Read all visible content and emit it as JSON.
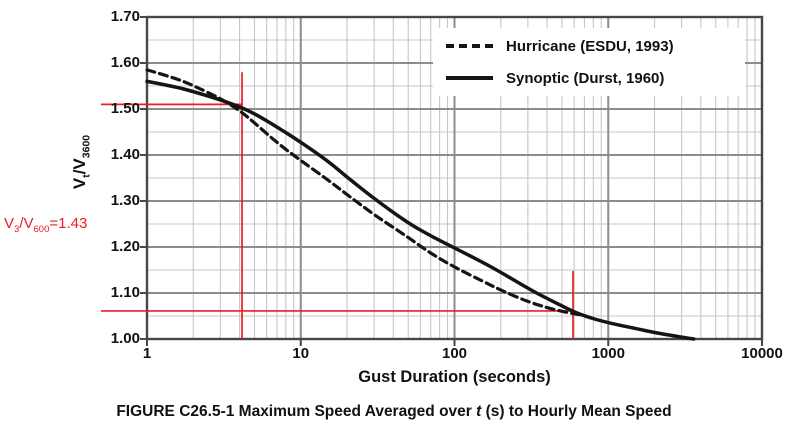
{
  "figure": {
    "caption": {
      "prefix": "FIGURE C26.5-1 Maximum Speed Averaged over ",
      "italic_var": "t",
      "suffix": " (s) to Hourly Mean Speed"
    }
  },
  "chart_data": {
    "type": "line",
    "title": "",
    "xlabel": "Gust Duration (seconds)",
    "ylabel": "Vt/V3600",
    "ylabel_parts": {
      "base1": "V",
      "sub1": "t",
      "base2": "/V",
      "sub2": "3600"
    },
    "x_scale": "log",
    "xlim": [
      1,
      10000
    ],
    "ylim": [
      1.0,
      1.7
    ],
    "x_tick_values": [
      1,
      10,
      100,
      1000,
      10000
    ],
    "x_tick_labels": [
      "1",
      "10",
      "100",
      "1000",
      "10000"
    ],
    "y_tick_values": [
      1.0,
      1.1,
      1.2,
      1.3,
      1.4,
      1.5,
      1.6,
      1.7
    ],
    "y_tick_labels": [
      "1.00",
      "1.10",
      "1.20",
      "1.30",
      "1.40",
      "1.50",
      "1.60",
      "1.70"
    ],
    "y_minor_step": 0.05,
    "grid": true,
    "legend_position": "top-right",
    "series": [
      {
        "name": "Hurricane (ESDU, 1993)",
        "line_style": "dashed",
        "color": "#151515",
        "points": [
          [
            1,
            1.585
          ],
          [
            1.5,
            1.568
          ],
          [
            2,
            1.551
          ],
          [
            3,
            1.523
          ],
          [
            4,
            1.497
          ],
          [
            5,
            1.47
          ],
          [
            7,
            1.427
          ],
          [
            10,
            1.388
          ],
          [
            15,
            1.346
          ],
          [
            20,
            1.314
          ],
          [
            30,
            1.27
          ],
          [
            50,
            1.221
          ],
          [
            70,
            1.186
          ],
          [
            100,
            1.156
          ],
          [
            150,
            1.127
          ],
          [
            200,
            1.106
          ],
          [
            300,
            1.081
          ],
          [
            400,
            1.068
          ],
          [
            500,
            1.06
          ],
          [
            600,
            1.055
          ],
          [
            700,
            1.051
          ]
        ]
      },
      {
        "name": "Synoptic (Durst, 1960)",
        "line_style": "solid",
        "color": "#151515",
        "points": [
          [
            1,
            1.56
          ],
          [
            1.5,
            1.549
          ],
          [
            2,
            1.538
          ],
          [
            3,
            1.52
          ],
          [
            4,
            1.505
          ],
          [
            5,
            1.49
          ],
          [
            7,
            1.461
          ],
          [
            10,
            1.428
          ],
          [
            15,
            1.387
          ],
          [
            20,
            1.352
          ],
          [
            30,
            1.305
          ],
          [
            50,
            1.252
          ],
          [
            70,
            1.224
          ],
          [
            100,
            1.198
          ],
          [
            150,
            1.168
          ],
          [
            200,
            1.145
          ],
          [
            300,
            1.11
          ],
          [
            400,
            1.088
          ],
          [
            500,
            1.072
          ],
          [
            600,
            1.059
          ],
          [
            700,
            1.05
          ],
          [
            1000,
            1.035
          ],
          [
            1500,
            1.023
          ],
          [
            2000,
            1.014
          ],
          [
            3000,
            1.004
          ],
          [
            3600,
            1.0
          ]
        ]
      }
    ],
    "annotations": {
      "label_parts": {
        "base1": "V",
        "sub1": "3",
        "base2": "/V",
        "sub2": "600",
        "base3": "=1.43"
      },
      "label_text": "V3/V600=1.43",
      "color": "#ed1c24",
      "vlines": [
        {
          "x": 4.15,
          "y_from": 1.0,
          "y_to": 1.58
        },
        {
          "x": 590,
          "y_from": 1.0,
          "y_to": 1.148
        }
      ],
      "hlines": [
        {
          "y": 1.51,
          "x_to": 4.15
        },
        {
          "y": 1.061,
          "x_to": 590
        }
      ]
    },
    "colors": {
      "curve": "#151515",
      "grid_minor": "#c7c7c7",
      "grid_major": "#8c8c8c",
      "axis_border": "#474747",
      "accent_red": "#ed1c24"
    }
  }
}
